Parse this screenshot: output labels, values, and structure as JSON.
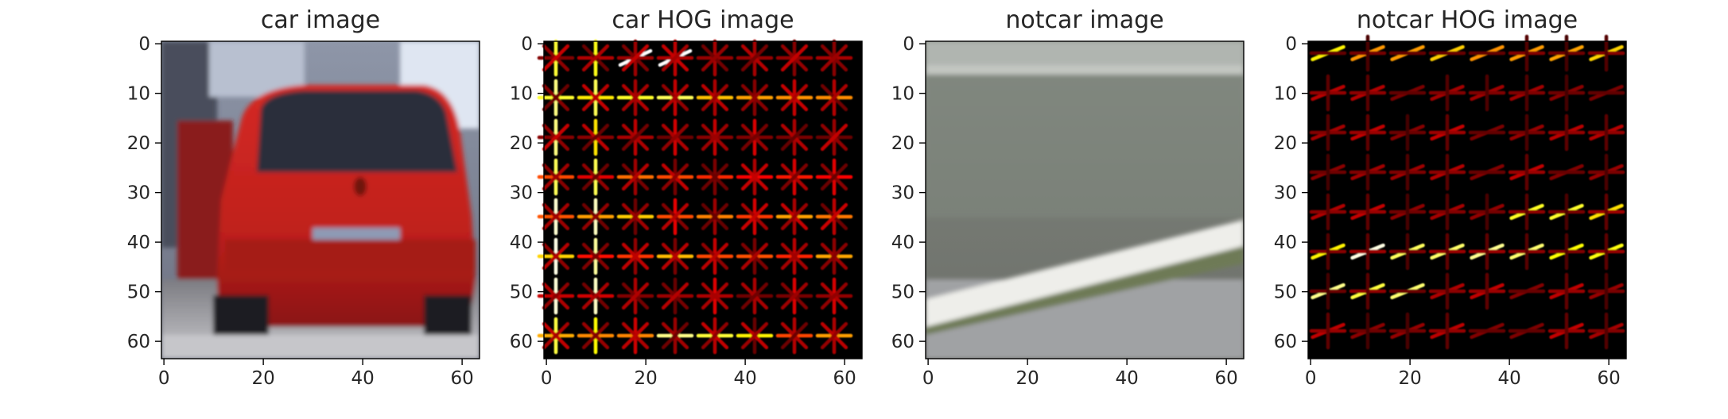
{
  "figure": {
    "background": "#ffffff",
    "panels": [
      {
        "key": "car",
        "title": "car image",
        "kind": "photo"
      },
      {
        "key": "car_hog",
        "title": "car HOG image",
        "kind": "hog"
      },
      {
        "key": "notcar",
        "title": "notcar image",
        "kind": "photo"
      },
      {
        "key": "notcar_hog",
        "title": "notcar HOG image",
        "kind": "hog"
      }
    ]
  },
  "chart_data": [
    {
      "type": "heatmap",
      "title": "car image",
      "image_size": [
        64,
        64
      ],
      "xlim": [
        0,
        63
      ],
      "ylim": [
        63,
        0
      ],
      "x_ticks": [
        0,
        20,
        40,
        60
      ],
      "y_ticks": [
        0,
        10,
        20,
        30,
        40,
        50,
        60
      ],
      "grid": false,
      "content": "rear view of a red hatchback car on a road",
      "colors": {
        "sky": "#9aa4b8",
        "car_red": "#c8221f",
        "window": "#2a2e3a",
        "road": "#a0a0a6",
        "plate": "#8e9ab4"
      }
    },
    {
      "type": "heatmap",
      "title": "car HOG image",
      "image_size": [
        64,
        64
      ],
      "xlim": [
        0,
        63
      ],
      "ylim": [
        63,
        0
      ],
      "x_ticks": [
        0,
        20,
        40,
        60
      ],
      "y_ticks": [
        0,
        10,
        20,
        30,
        40,
        50,
        60
      ],
      "grid": false,
      "colormap": "hot",
      "cell_size": 8,
      "dominant_orientations": [
        "horizontal",
        "vertical"
      ]
    },
    {
      "type": "heatmap",
      "title": "notcar image",
      "image_size": [
        64,
        64
      ],
      "xlim": [
        0,
        63
      ],
      "ylim": [
        63,
        0
      ],
      "x_ticks": [
        0,
        20,
        40,
        60
      ],
      "y_ticks": [
        0,
        10,
        20,
        30,
        40,
        50,
        60
      ],
      "grid": false,
      "content": "grey road surface with a diagonal white lane stripe",
      "colors": {
        "wall": "#aab0ac",
        "road": "#7b807a",
        "stripe": "#eeeeea",
        "bottom": "#9ea0a2"
      }
    },
    {
      "type": "heatmap",
      "title": "notcar HOG image",
      "image_size": [
        64,
        64
      ],
      "xlim": [
        0,
        63
      ],
      "ylim": [
        63,
        0
      ],
      "x_ticks": [
        0,
        20,
        40,
        60
      ],
      "y_ticks": [
        0,
        10,
        20,
        30,
        40,
        50,
        60
      ],
      "grid": false,
      "colormap": "hot",
      "cell_size": 8,
      "dominant_orientations": [
        "diagonal"
      ]
    }
  ]
}
